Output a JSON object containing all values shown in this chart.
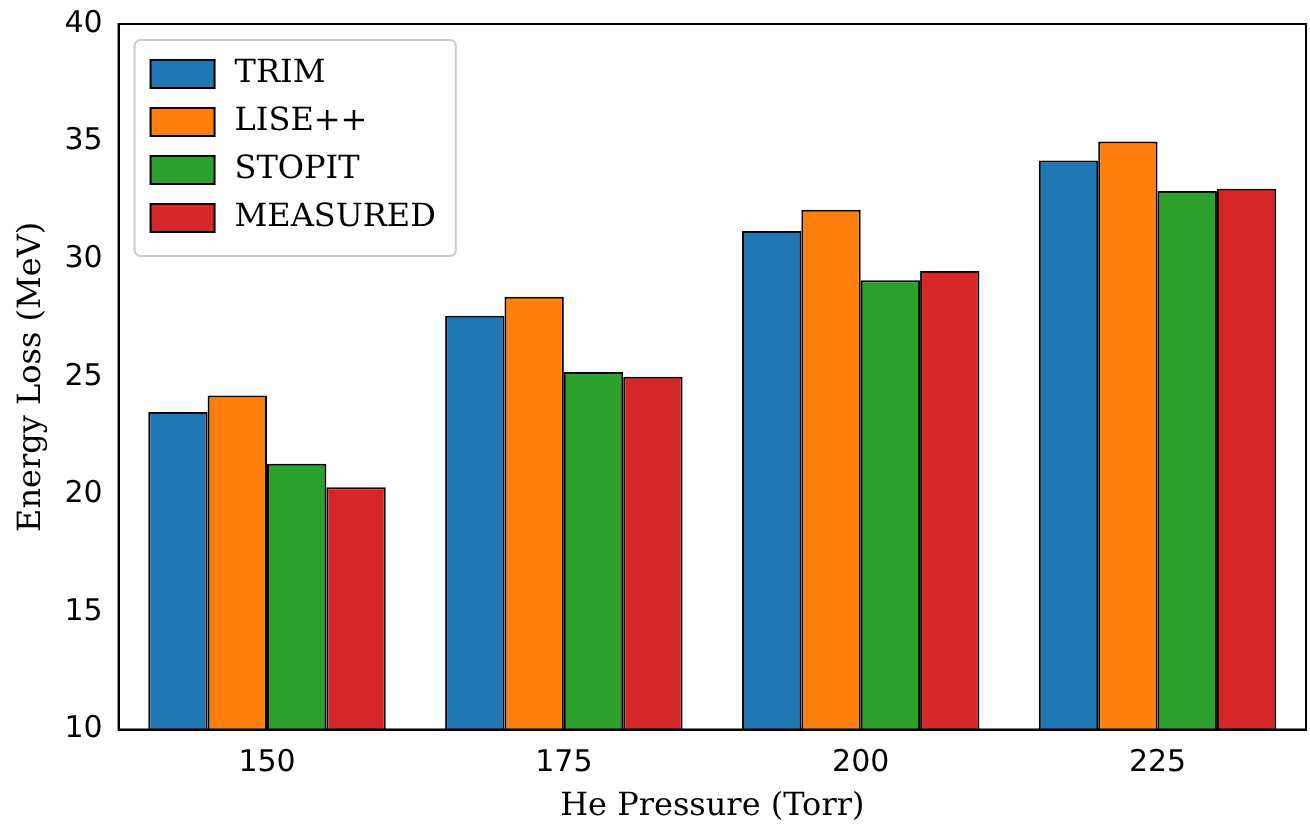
{
  "chart_data": {
    "type": "bar",
    "xlabel": "He Pressure (Torr)",
    "ylabel": "Energy Loss (MeV)",
    "categories": [
      "150",
      "175",
      "200",
      "225"
    ],
    "series": [
      {
        "name": "TRIM",
        "color": "#1f77b4",
        "values": [
          23.5,
          27.6,
          31.2,
          34.2
        ]
      },
      {
        "name": "LISE++",
        "color": "#ff7f0e",
        "values": [
          24.2,
          28.4,
          32.1,
          35.0
        ]
      },
      {
        "name": "STOPIT",
        "color": "#2ca02c",
        "values": [
          21.3,
          25.2,
          29.1,
          32.9
        ]
      },
      {
        "name": "MEASURED",
        "color": "#d62728",
        "values": [
          20.3,
          25.0,
          29.5,
          33.0
        ]
      }
    ],
    "ylim": [
      10,
      40
    ],
    "yticks": [
      10,
      15,
      20,
      25,
      30,
      35,
      40
    ],
    "grid": false,
    "legend": "top left"
  }
}
